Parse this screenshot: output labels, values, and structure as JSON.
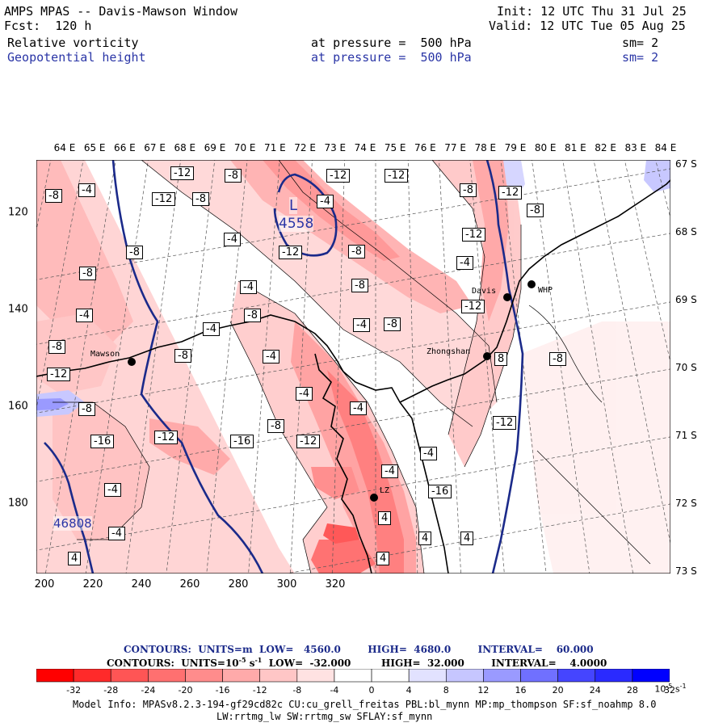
{
  "header": {
    "title": "AMPS MPAS -- Davis-Mawson Window",
    "fcst": "Fcst:  120 h",
    "init": "Init: 12 UTC Thu 31 Jul 25",
    "valid": "Valid: 12 UTC Tue 05 Aug 25",
    "field1": {
      "name": "Relative vorticity",
      "level": "at pressure =  500 hPa",
      "sm": "sm= 2"
    },
    "field2": {
      "name": "Geopotential height",
      "level": "at pressure =  500 hPa",
      "sm": "sm= 2"
    }
  },
  "axes": {
    "lon_labels": [
      "64 E",
      "65 E",
      "66 E",
      "67 E",
      "68 E",
      "69 E",
      "70 E",
      "71 E",
      "72 E",
      "73 E",
      "74 E",
      "75 E",
      "76 E",
      "77 E",
      "78 E",
      "79 E",
      "80 E",
      "81 E",
      "82 E",
      "83 E",
      "84 E"
    ],
    "lat_labels": [
      "67 S",
      "68 S",
      "69 S",
      "70 S",
      "71 S",
      "72 S",
      "73 S"
    ],
    "x_ticks": [
      "200",
      "220",
      "240",
      "260",
      "280",
      "300",
      "320"
    ],
    "y_ticks": [
      "120",
      "140",
      "160",
      "180"
    ]
  },
  "stations": [
    {
      "name": "Mawson"
    },
    {
      "name": "Davis"
    },
    {
      "name": "WHP"
    },
    {
      "name": "Zhongshan"
    },
    {
      "name": "LZ"
    }
  ],
  "height_labels": [
    {
      "text": "L",
      "color": "#2a35a6"
    },
    {
      "text": "4558",
      "color": "#2a35a6"
    },
    {
      "text": "46808",
      "color": "#2a35a6"
    }
  ],
  "vorticity_labels": [
    "-8",
    "-4",
    "-12",
    "-8",
    "-12",
    "-8",
    "-12",
    "-12",
    "-8",
    "-4",
    "-8",
    "-12",
    "-8",
    "-4",
    "-8",
    "-4",
    "-8",
    "-12",
    "-4",
    "-12",
    "-4",
    "-12",
    "-8",
    "-4",
    "-8",
    "-4",
    "-8",
    "-12",
    "-8",
    "-4",
    "-4",
    "-8",
    "-12",
    "-4",
    "-16",
    "-8",
    "-12",
    "-4",
    "-4",
    "-16",
    "-4",
    "-16",
    "-4",
    "4",
    "4",
    "4",
    "4",
    "4",
    "8",
    "-8",
    "-12",
    "-8"
  ],
  "contour_info": {
    "line1": "CONTOURS:  UNITS=m  LOW=   4560.0        HIGH=  4680.0        INTERVAL=    60.000",
    "line2_a": "CONTOURS:  UNITS=10",
    "line2_b": "-5",
    "line2_c": " s",
    "line2_d": "-1",
    "line2_e": "  LOW=  -32.000         HIGH=  32.000        INTERVAL=    4.0000"
  },
  "colorbar": {
    "colors": [
      "#ff0000",
      "#ff2a2a",
      "#ff5555",
      "#ff7070",
      "#ff8c8c",
      "#ffaaaa",
      "#ffc6c6",
      "#ffe2e2",
      "#ffffff",
      "#ffffff",
      "#e2e2ff",
      "#c6c6ff",
      "#9a9aff",
      "#7070ff",
      "#4545ff",
      "#2a2aff",
      "#0000ff",
      "#0000ff"
    ],
    "ticks": [
      "-32",
      "-28",
      "-24",
      "-20",
      "-16",
      "-12",
      "-8",
      "-4",
      "0",
      "4",
      "8",
      "12",
      "16",
      "20",
      "24",
      "28",
      "32"
    ],
    "units_a": "10",
    "units_b": "-5",
    "units_c": " s",
    "units_d": "-1"
  },
  "model_info": {
    "line1": "Model Info: MPASv8.2.3-194-gf29cd82c CU:cu_grell_freitas PBL:bl_mynn MP:mp_thompson SF:sf_noahmp 8.0",
    "line2": "LW:rrtmg_lw SW:rrtmg_sw SFLAY:sf_mynn"
  }
}
